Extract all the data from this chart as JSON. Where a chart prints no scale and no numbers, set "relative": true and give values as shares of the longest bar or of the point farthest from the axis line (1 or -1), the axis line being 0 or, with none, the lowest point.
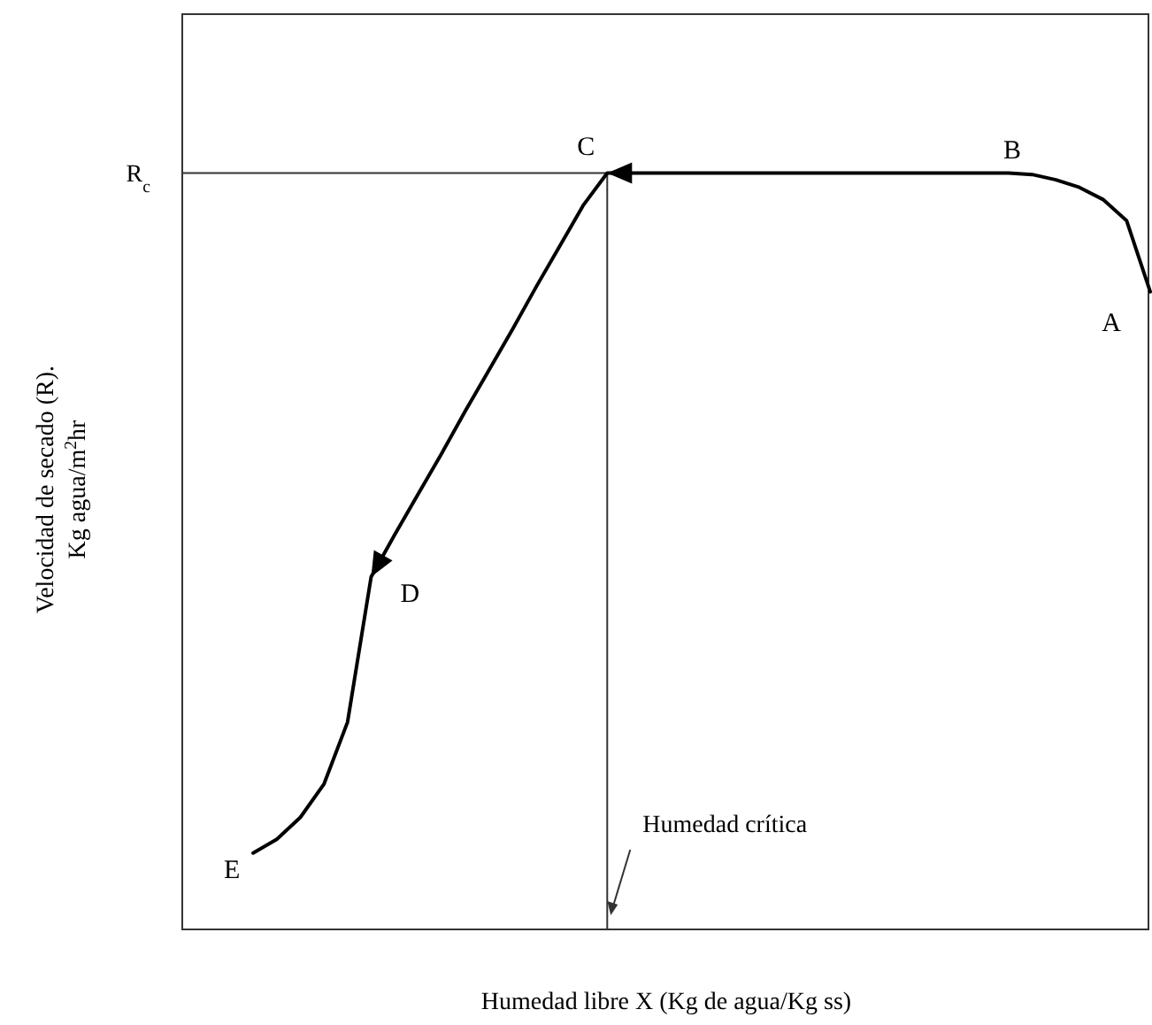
{
  "chart_data": {
    "type": "line",
    "relative": true,
    "xlabel": "Humedad libre X (Kg de agua/Kg ss)",
    "ylabel": "Velocidad de secado (R).\nKg agua/m$^{2}$hr",
    "marker": "none",
    "line_style": "solid",
    "categories": [
      null,
      null,
      null,
      null,
      null,
      null,
      null,
      null,
      null,
      null,
      null,
      null,
      null,
      null,
      null,
      null,
      null,
      null,
      null,
      null,
      null,
      null,
      null,
      null,
      null,
      null,
      null,
      null,
      null,
      null,
      null,
      null,
      null,
      null,
      null,
      null,
      null,
      null,
      null,
      null,
      null,
      null
    ],
    "series": [
      {
        "color": "#000000",
        "values": [
          null,
          null,
          null,
          0.101,
          0.119,
          0.148,
          0.192,
          0.274,
          0.466,
          0.522,
          0.576,
          0.63,
          0.686,
          0.74,
          0.794,
          0.85,
          0.904,
          0.958,
          1,
          1,
          1,
          1,
          1,
          1,
          1,
          1,
          1,
          1,
          1,
          1,
          1,
          1,
          1,
          1,
          1,
          1,
          0.998,
          0.991,
          0.981,
          0.965,
          0.937,
          0.843
        ]
      }
    ],
    "ref_lines": [
      {
        "axis": "y",
        "value": 1,
        "label": "R$_{c}$"
      },
      {
        "axis": "x",
        "label": "Humedad crítica"
      }
    ],
    "annotations": [
      "A",
      "B",
      "C",
      "D",
      "E"
    ]
  }
}
